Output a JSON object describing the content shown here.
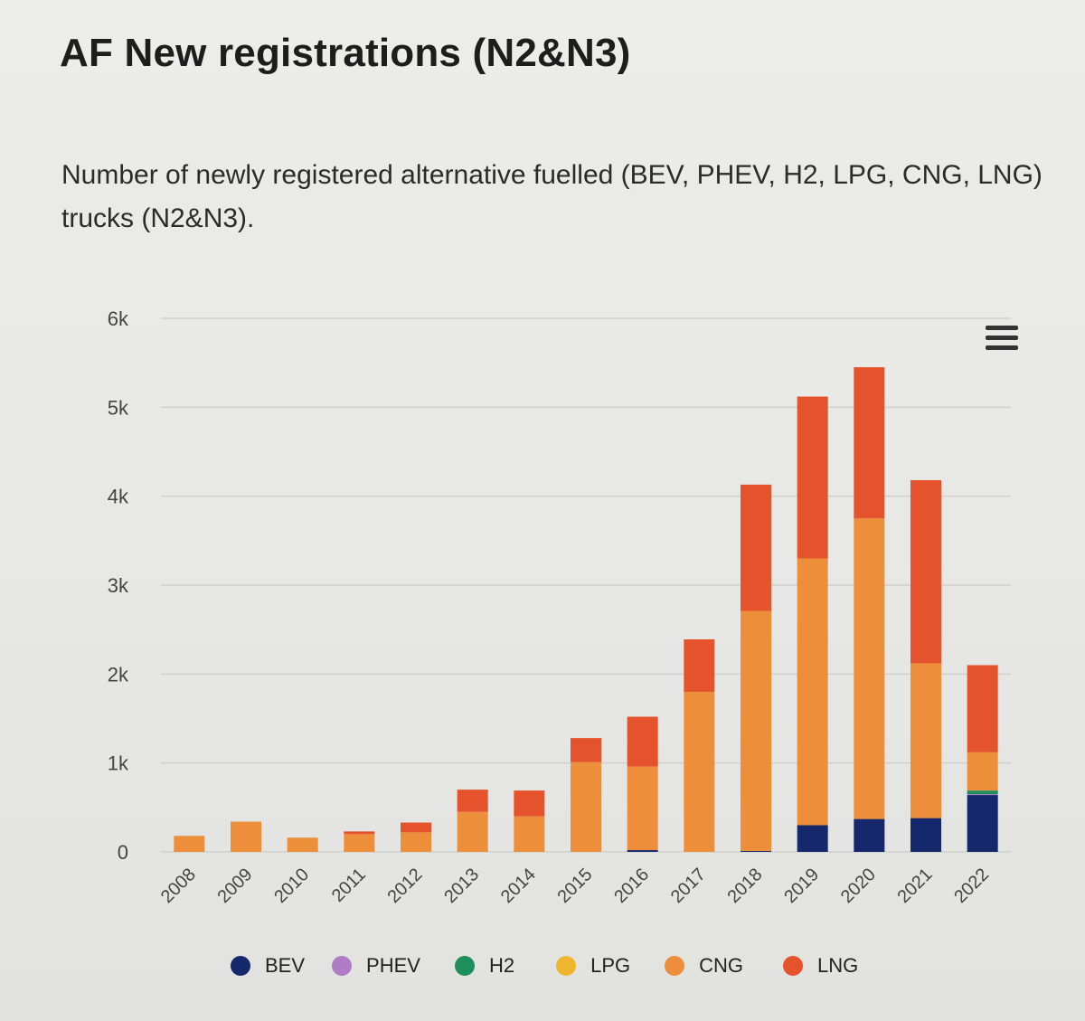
{
  "header": {
    "title": "AF New registrations (N2&N3)",
    "subtitle": "Number of newly registered alternative fuelled (BEV, PHEV, H2, LPG, CNG, LNG) trucks (N2&N3)."
  },
  "toolbar": {
    "menu_icon": "hamburger-menu-icon"
  },
  "colors": {
    "BEV": "#14286b",
    "PHEV": "#b07cc6",
    "H2": "#1e8f5c",
    "LPG": "#efb72f",
    "CNG": "#ed8f3a",
    "LNG": "#e4532c",
    "grid": "#cfcfcc",
    "axis_text": "#444444"
  },
  "chart_data": {
    "type": "bar",
    "stacked": true,
    "title": "AF New registrations (N2&N3)",
    "subtitle": "Number of newly registered alternative fuelled (BEV, PHEV, H2, LPG, CNG, LNG) trucks (N2&N3).",
    "xlabel": "",
    "ylabel": "",
    "ylim": [
      0,
      6000
    ],
    "yticks": [
      0,
      1000,
      2000,
      3000,
      4000,
      5000,
      6000
    ],
    "ytick_labels": [
      "0",
      "1k",
      "2k",
      "3k",
      "4k",
      "5k",
      "6k"
    ],
    "grid": true,
    "legend_position": "bottom",
    "categories": [
      "2008",
      "2009",
      "2010",
      "2011",
      "2012",
      "2013",
      "2014",
      "2015",
      "2016",
      "2017",
      "2018",
      "2019",
      "2020",
      "2021",
      "2022"
    ],
    "series": [
      {
        "name": "BEV",
        "values": [
          0,
          0,
          0,
          0,
          0,
          0,
          0,
          0,
          20,
          0,
          10,
          300,
          370,
          380,
          640
        ]
      },
      {
        "name": "PHEV",
        "values": [
          0,
          0,
          0,
          0,
          0,
          0,
          0,
          0,
          0,
          0,
          0,
          0,
          0,
          0,
          10
        ]
      },
      {
        "name": "H2",
        "values": [
          0,
          0,
          0,
          0,
          0,
          0,
          0,
          0,
          0,
          0,
          0,
          0,
          0,
          0,
          40
        ]
      },
      {
        "name": "LPG",
        "values": [
          0,
          0,
          0,
          0,
          0,
          0,
          0,
          0,
          0,
          0,
          0,
          0,
          0,
          0,
          0
        ]
      },
      {
        "name": "CNG",
        "values": [
          180,
          340,
          160,
          200,
          220,
          450,
          400,
          1010,
          940,
          1800,
          2700,
          3000,
          3380,
          1740,
          430
        ]
      },
      {
        "name": "LNG",
        "values": [
          0,
          0,
          0,
          30,
          110,
          250,
          290,
          270,
          560,
          590,
          1420,
          1820,
          1700,
          2060,
          980
        ]
      }
    ]
  }
}
